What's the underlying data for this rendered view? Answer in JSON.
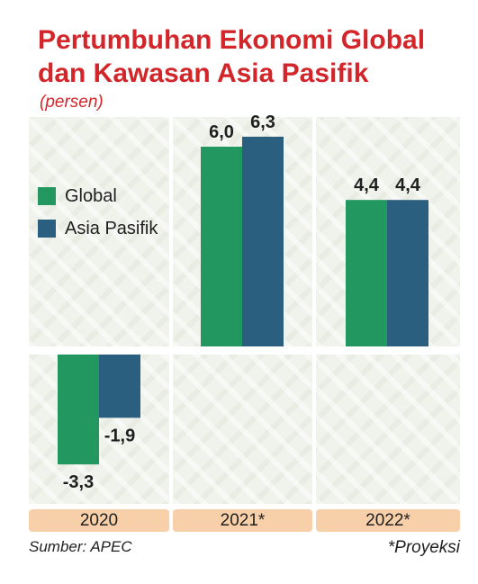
{
  "chart_data": {
    "type": "bar",
    "title": "Pertumbuhan Ekonomi Global dan Kawasan Asia Pasifik",
    "subtitle": "(persen)",
    "categories": [
      "2020",
      "2021*",
      "2022*"
    ],
    "series": [
      {
        "name": "Global",
        "color": "#22975f",
        "values": [
          -3.3,
          6.0,
          4.4
        ],
        "labels": [
          "-3,3",
          "6,0",
          "4,4"
        ]
      },
      {
        "name": "Asia Pasifik",
        "color": "#2b5f80",
        "values": [
          -1.9,
          6.3,
          4.4
        ],
        "labels": [
          "-1,9",
          "6,3",
          "4,4"
        ]
      }
    ],
    "legend_position": "left",
    "grid": false,
    "ylim": [
      -4.5,
      6.5
    ]
  },
  "source": "Sumber: APEC",
  "note": "*Proyeksi",
  "colors": {
    "title": "#d3262b",
    "year_band": "#f7cfa8"
  }
}
